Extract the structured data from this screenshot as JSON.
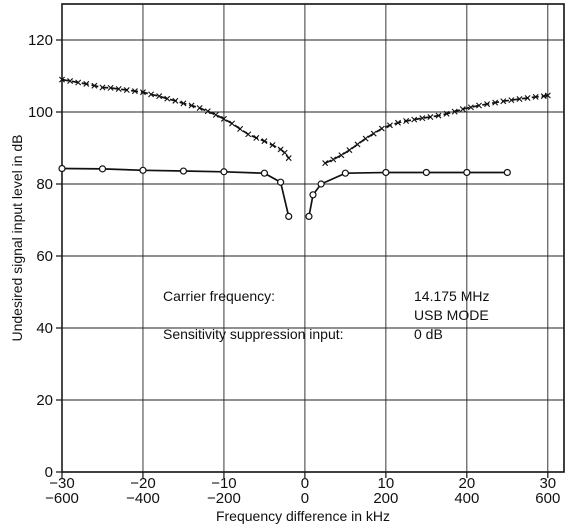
{
  "chart_data": {
    "type": "line",
    "title": "",
    "xlabel": "Frequency difference in kHz",
    "ylabel": "Undesired signal input level in dB",
    "xlim": [
      -30,
      32
    ],
    "ylim": [
      0,
      130
    ],
    "grid": true,
    "x_ticks_top": [
      "−30",
      "−20",
      "−10",
      "0",
      "10",
      "20",
      "30"
    ],
    "x_ticks_bottom": [
      "−600",
      "−400",
      "−200",
      "0",
      "200",
      "400",
      "600"
    ],
    "x_tick_values": [
      -30,
      -20,
      -10,
      0,
      10,
      20,
      30
    ],
    "y_ticks": [
      "0",
      "20",
      "40",
      "60",
      "80",
      "100",
      "120"
    ],
    "y_tick_values": [
      0,
      20,
      40,
      60,
      80,
      100,
      120
    ],
    "series": [
      {
        "marker": "x",
        "x": [
          -30,
          -29,
          -28,
          -27,
          -26,
          -25,
          -24,
          -23,
          -22,
          -21,
          -20,
          -19,
          -18,
          -17,
          -16,
          -15,
          -14,
          -13,
          -12,
          -11,
          -10,
          -9,
          -8,
          -7,
          -6,
          -5,
          -4,
          -3,
          -2.5,
          -2
        ],
        "y": [
          109,
          108.6,
          108.2,
          107.8,
          107.3,
          106.8,
          106.7,
          106.4,
          106.1,
          105.8,
          105.5,
          104.9,
          104.4,
          103.7,
          103.1,
          102.4,
          101.8,
          101.1,
          100.2,
          99.2,
          98.1,
          96.8,
          95.3,
          93.8,
          92.8,
          91.9,
          90.8,
          89.6,
          88.7,
          87.2
        ],
        "x_right": [
          2.5,
          3.5,
          4.5,
          5.5,
          6.5,
          7.5,
          8.5,
          9.5,
          10.5,
          11.5,
          12.5,
          13.5,
          14.5,
          15.5,
          16.5,
          17.5,
          18.5,
          19.5,
          20.5,
          21.5,
          22.5,
          23.5,
          24.5,
          25.5,
          26.5,
          27.5,
          28.5,
          29.5,
          30
        ],
        "y_right": [
          85.8,
          86.8,
          88,
          89.4,
          91,
          92.6,
          94,
          95.4,
          96.3,
          97,
          97.5,
          97.9,
          98.3,
          98.6,
          99,
          99.5,
          100.1,
          100.8,
          101.3,
          101.8,
          102.2,
          102.6,
          103,
          103.3,
          103.6,
          103.9,
          104.2,
          104.4,
          104.6
        ]
      },
      {
        "marker": "o",
        "x": [
          -30,
          -25,
          -20,
          -15,
          -10,
          -5,
          -3,
          -2
        ],
        "y": [
          84.3,
          84.2,
          83.8,
          83.6,
          83.4,
          83,
          80.5,
          71
        ],
        "x_right": [
          0.5,
          1,
          2,
          5,
          10,
          15,
          20,
          25
        ],
        "y_right": [
          71,
          77,
          80,
          83,
          83.2,
          83.2,
          83.2,
          83.2
        ]
      }
    ],
    "annotations": {
      "carrier_label": "Carrier frequency:",
      "carrier_value": "14.175 MHz",
      "mode": "USB MODE",
      "sensitivity_label": "Sensitivity suppression input:",
      "sensitivity_value": "0 dB"
    }
  }
}
